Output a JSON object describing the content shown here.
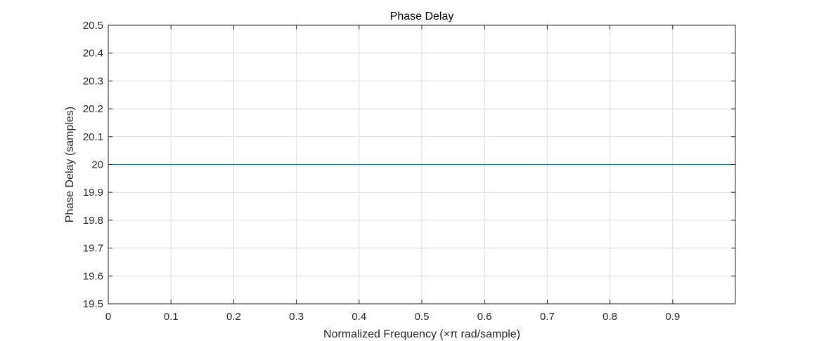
{
  "chart_data": {
    "type": "line",
    "title": "Phase Delay",
    "xlabel": "Normalized Frequency (×π rad/sample)",
    "ylabel": "Phase Delay (samples)",
    "xlim": [
      0,
      1
    ],
    "ylim": [
      19.5,
      20.5
    ],
    "xticks": [
      0,
      0.1,
      0.2,
      0.3,
      0.4,
      0.5,
      0.6,
      0.7,
      0.8,
      0.9
    ],
    "xtick_labels": [
      "0",
      "0.1",
      "0.2",
      "0.3",
      "0.4",
      "0.5",
      "0.6",
      "0.7",
      "0.8",
      "0.9"
    ],
    "yticks": [
      19.5,
      19.6,
      19.7,
      19.8,
      19.9,
      20,
      20.1,
      20.2,
      20.3,
      20.4,
      20.5
    ],
    "ytick_labels": [
      "19.5",
      "19.6",
      "19.7",
      "19.8",
      "19.9",
      "20",
      "20.1",
      "20.2",
      "20.3",
      "20.4",
      "20.5"
    ],
    "grid": true,
    "series": [
      {
        "color": "#0072bd",
        "x": [
          0,
          0.1,
          0.2,
          0.3,
          0.4,
          0.5,
          0.6,
          0.7,
          0.8,
          0.9,
          1.0
        ],
        "y": [
          20,
          20,
          20,
          20,
          20,
          20,
          20,
          20,
          20,
          20,
          20
        ]
      }
    ]
  }
}
